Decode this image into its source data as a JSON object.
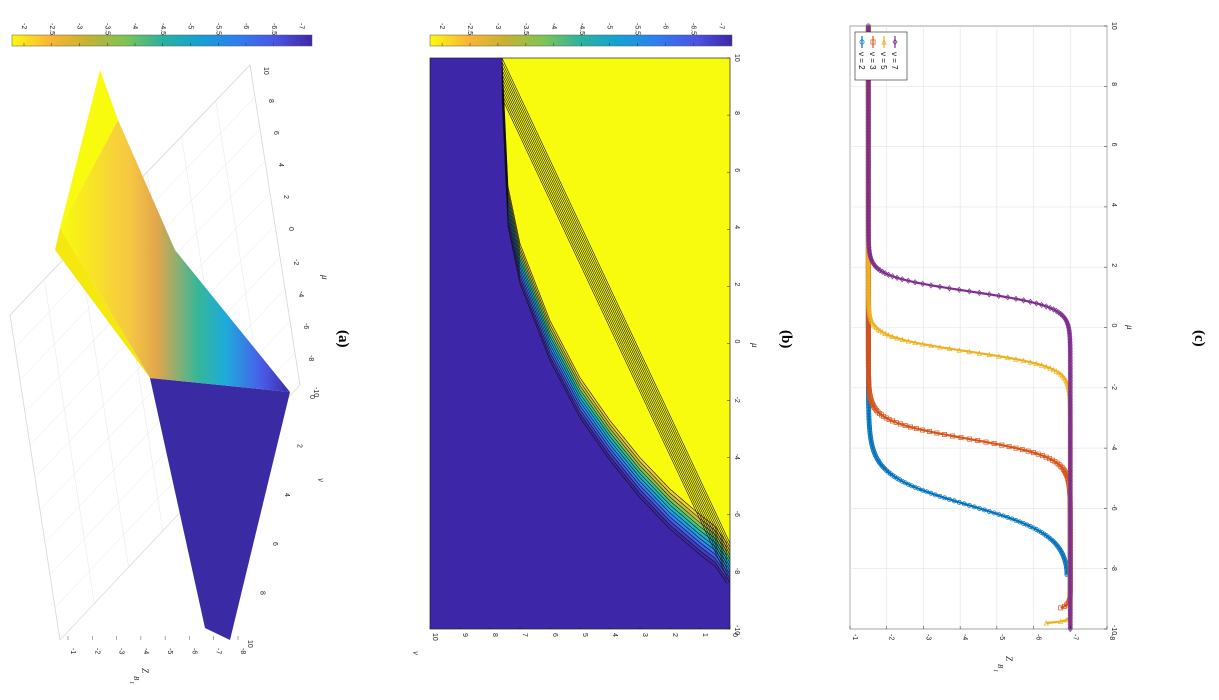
{
  "panels": [
    {
      "label": "(a)"
    },
    {
      "label": "(b)"
    },
    {
      "label": "(c)"
    }
  ],
  "colorbar": {
    "ticks": [
      "-2",
      "-2.5",
      "-3",
      "-3.5",
      "-4",
      "-4.5",
      "-5",
      "-5.5",
      "-6",
      "-6.5",
      "-7"
    ],
    "colors": [
      "#f9fb0e",
      "#fbb534",
      "#c6b230",
      "#7fc454",
      "#2bb29f",
      "#14a1d4",
      "#2e7ff0",
      "#4a56e6",
      "#3e26a8"
    ]
  },
  "chart_data": [
    {
      "type": "surface",
      "panel": "(a)",
      "xlabel": "ν",
      "ylabel": "μ",
      "zlabel": "Z_{B_1}",
      "xlim": [
        0,
        10
      ],
      "ylim": [
        -10,
        10
      ],
      "zlim": [
        -8,
        -1
      ],
      "x_ticks": [
        "0",
        "2",
        "4",
        "6",
        "8",
        "10"
      ],
      "y_ticks": [
        "-10",
        "-8",
        "-6",
        "-4",
        "-2",
        "0",
        "2",
        "4",
        "6",
        "8",
        "10"
      ],
      "z_ticks": [
        "-1",
        "-2",
        "-3",
        "-4",
        "-5",
        "-6",
        "-7",
        "-8"
      ],
      "levels": {
        "high": -1.5,
        "low": -7
      }
    },
    {
      "type": "heatmap",
      "panel": "(b)",
      "xlabel": "μ",
      "ylabel": "ν",
      "xlim": [
        -10,
        10
      ],
      "ylim": [
        0,
        10
      ],
      "x_ticks": [
        "-10",
        "-8",
        "-6",
        "-4",
        "-2",
        "0",
        "2",
        "4",
        "6",
        "8",
        "10"
      ],
      "y_ticks": [
        "0",
        "1",
        "2",
        "3",
        "4",
        "5",
        "6",
        "7",
        "8",
        "9",
        "10"
      ],
      "boundary": [
        {
          "nu": 0.1,
          "mu": -7.0
        },
        {
          "nu": 0.5,
          "mu": -6.4
        },
        {
          "nu": 1,
          "mu": -6.0
        },
        {
          "nu": 2,
          "mu": -5.1
        },
        {
          "nu": 3,
          "mu": -4.0
        },
        {
          "nu": 4,
          "mu": -2.7
        },
        {
          "nu": 5,
          "mu": -1.2
        },
        {
          "nu": 6,
          "mu": 0.8
        },
        {
          "nu": 7,
          "mu": 3.5
        },
        {
          "nu": 7.4,
          "mu": 5.5
        },
        {
          "nu": 7.6,
          "mu": 10
        }
      ],
      "transition_width": 1.4
    },
    {
      "type": "line",
      "panel": "(c)",
      "xlabel": "μ",
      "ylabel": "Z_{B_1}",
      "xlim": [
        -10,
        10
      ],
      "ylim": [
        -8,
        -1
      ],
      "x_ticks": [
        "-10",
        "-8",
        "-6",
        "-4",
        "-2",
        "0",
        "2",
        "4",
        "6",
        "8",
        "10"
      ],
      "y_ticks": [
        "-1",
        "-2",
        "-3",
        "-4",
        "-5",
        "-6",
        "-7",
        "-8"
      ],
      "grid": true,
      "legend_position": "top-left",
      "series": [
        {
          "name": "ν = 2",
          "color": "#0072bd",
          "marker": "circle",
          "high": -1.5,
          "low": -7,
          "center": -5.9,
          "width": 0.5,
          "dip_center": -9.7,
          "dip_width": 0.3,
          "tail_end": -8.2
        },
        {
          "name": "ν = 3",
          "color": "#d95319",
          "marker": "square",
          "high": -1.5,
          "low": -7,
          "center": -3.7,
          "width": 0.3,
          "dip_center": -9.6,
          "dip_width": 0.1,
          "tail_end": -9.3
        },
        {
          "name": "ν = 5",
          "color": "#edb120",
          "marker": "triangle-left",
          "high": -1.5,
          "low": -7,
          "center": -0.8,
          "width": 0.25,
          "dip_center": -9.9,
          "dip_width": 0.05,
          "tail_end": -9.8
        },
        {
          "name": "ν = 7",
          "color": "#7e2f8e",
          "marker": "diamond",
          "high": -1.5,
          "low": -7,
          "center": 1.2,
          "width": 0.25,
          "dip_center": -10.5,
          "dip_width": 0.05,
          "tail_end": -10
        }
      ]
    }
  ]
}
